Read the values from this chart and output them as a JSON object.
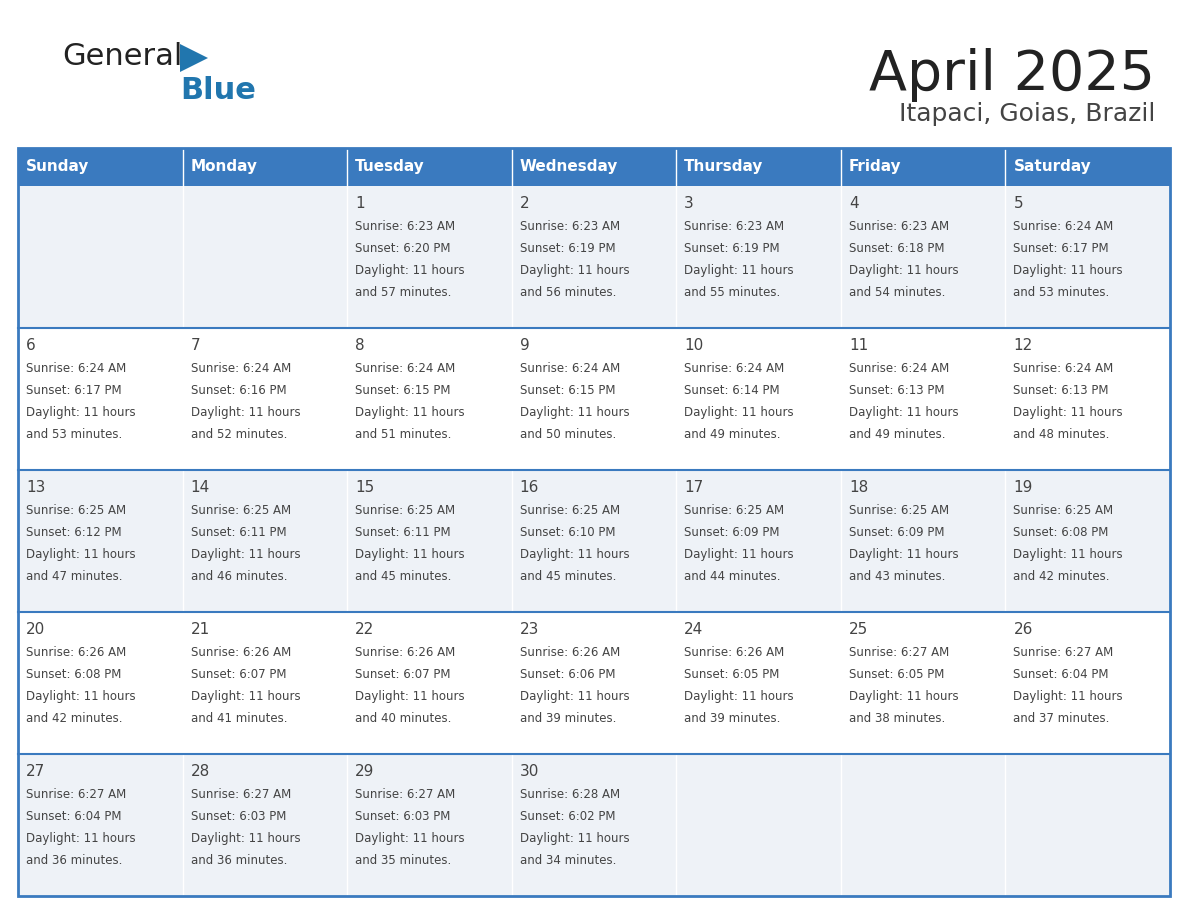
{
  "title": "April 2025",
  "subtitle": "Itapaci, Goias, Brazil",
  "header_bg": "#3a7abf",
  "header_text_color": "#ffffff",
  "cell_bg_odd": "#eef2f7",
  "cell_bg_even": "#ffffff",
  "text_color": "#444444",
  "border_color": "#3a7abf",
  "logo_text_color": "#222222",
  "logo_blue_color": "#2176ae",
  "days_of_week": [
    "Sunday",
    "Monday",
    "Tuesday",
    "Wednesday",
    "Thursday",
    "Friday",
    "Saturday"
  ],
  "calendar_data": [
    [
      {
        "day": "",
        "sunrise": "",
        "sunset": "",
        "daylight": ""
      },
      {
        "day": "",
        "sunrise": "",
        "sunset": "",
        "daylight": ""
      },
      {
        "day": "1",
        "sunrise": "Sunrise: 6:23 AM",
        "sunset": "Sunset: 6:20 PM",
        "daylight": "Daylight: 11 hours\nand 57 minutes."
      },
      {
        "day": "2",
        "sunrise": "Sunrise: 6:23 AM",
        "sunset": "Sunset: 6:19 PM",
        "daylight": "Daylight: 11 hours\nand 56 minutes."
      },
      {
        "day": "3",
        "sunrise": "Sunrise: 6:23 AM",
        "sunset": "Sunset: 6:19 PM",
        "daylight": "Daylight: 11 hours\nand 55 minutes."
      },
      {
        "day": "4",
        "sunrise": "Sunrise: 6:23 AM",
        "sunset": "Sunset: 6:18 PM",
        "daylight": "Daylight: 11 hours\nand 54 minutes."
      },
      {
        "day": "5",
        "sunrise": "Sunrise: 6:24 AM",
        "sunset": "Sunset: 6:17 PM",
        "daylight": "Daylight: 11 hours\nand 53 minutes."
      }
    ],
    [
      {
        "day": "6",
        "sunrise": "Sunrise: 6:24 AM",
        "sunset": "Sunset: 6:17 PM",
        "daylight": "Daylight: 11 hours\nand 53 minutes."
      },
      {
        "day": "7",
        "sunrise": "Sunrise: 6:24 AM",
        "sunset": "Sunset: 6:16 PM",
        "daylight": "Daylight: 11 hours\nand 52 minutes."
      },
      {
        "day": "8",
        "sunrise": "Sunrise: 6:24 AM",
        "sunset": "Sunset: 6:15 PM",
        "daylight": "Daylight: 11 hours\nand 51 minutes."
      },
      {
        "day": "9",
        "sunrise": "Sunrise: 6:24 AM",
        "sunset": "Sunset: 6:15 PM",
        "daylight": "Daylight: 11 hours\nand 50 minutes."
      },
      {
        "day": "10",
        "sunrise": "Sunrise: 6:24 AM",
        "sunset": "Sunset: 6:14 PM",
        "daylight": "Daylight: 11 hours\nand 49 minutes."
      },
      {
        "day": "11",
        "sunrise": "Sunrise: 6:24 AM",
        "sunset": "Sunset: 6:13 PM",
        "daylight": "Daylight: 11 hours\nand 49 minutes."
      },
      {
        "day": "12",
        "sunrise": "Sunrise: 6:24 AM",
        "sunset": "Sunset: 6:13 PM",
        "daylight": "Daylight: 11 hours\nand 48 minutes."
      }
    ],
    [
      {
        "day": "13",
        "sunrise": "Sunrise: 6:25 AM",
        "sunset": "Sunset: 6:12 PM",
        "daylight": "Daylight: 11 hours\nand 47 minutes."
      },
      {
        "day": "14",
        "sunrise": "Sunrise: 6:25 AM",
        "sunset": "Sunset: 6:11 PM",
        "daylight": "Daylight: 11 hours\nand 46 minutes."
      },
      {
        "day": "15",
        "sunrise": "Sunrise: 6:25 AM",
        "sunset": "Sunset: 6:11 PM",
        "daylight": "Daylight: 11 hours\nand 45 minutes."
      },
      {
        "day": "16",
        "sunrise": "Sunrise: 6:25 AM",
        "sunset": "Sunset: 6:10 PM",
        "daylight": "Daylight: 11 hours\nand 45 minutes."
      },
      {
        "day": "17",
        "sunrise": "Sunrise: 6:25 AM",
        "sunset": "Sunset: 6:09 PM",
        "daylight": "Daylight: 11 hours\nand 44 minutes."
      },
      {
        "day": "18",
        "sunrise": "Sunrise: 6:25 AM",
        "sunset": "Sunset: 6:09 PM",
        "daylight": "Daylight: 11 hours\nand 43 minutes."
      },
      {
        "day": "19",
        "sunrise": "Sunrise: 6:25 AM",
        "sunset": "Sunset: 6:08 PM",
        "daylight": "Daylight: 11 hours\nand 42 minutes."
      }
    ],
    [
      {
        "day": "20",
        "sunrise": "Sunrise: 6:26 AM",
        "sunset": "Sunset: 6:08 PM",
        "daylight": "Daylight: 11 hours\nand 42 minutes."
      },
      {
        "day": "21",
        "sunrise": "Sunrise: 6:26 AM",
        "sunset": "Sunset: 6:07 PM",
        "daylight": "Daylight: 11 hours\nand 41 minutes."
      },
      {
        "day": "22",
        "sunrise": "Sunrise: 6:26 AM",
        "sunset": "Sunset: 6:07 PM",
        "daylight": "Daylight: 11 hours\nand 40 minutes."
      },
      {
        "day": "23",
        "sunrise": "Sunrise: 6:26 AM",
        "sunset": "Sunset: 6:06 PM",
        "daylight": "Daylight: 11 hours\nand 39 minutes."
      },
      {
        "day": "24",
        "sunrise": "Sunrise: 6:26 AM",
        "sunset": "Sunset: 6:05 PM",
        "daylight": "Daylight: 11 hours\nand 39 minutes."
      },
      {
        "day": "25",
        "sunrise": "Sunrise: 6:27 AM",
        "sunset": "Sunset: 6:05 PM",
        "daylight": "Daylight: 11 hours\nand 38 minutes."
      },
      {
        "day": "26",
        "sunrise": "Sunrise: 6:27 AM",
        "sunset": "Sunset: 6:04 PM",
        "daylight": "Daylight: 11 hours\nand 37 minutes."
      }
    ],
    [
      {
        "day": "27",
        "sunrise": "Sunrise: 6:27 AM",
        "sunset": "Sunset: 6:04 PM",
        "daylight": "Daylight: 11 hours\nand 36 minutes."
      },
      {
        "day": "28",
        "sunrise": "Sunrise: 6:27 AM",
        "sunset": "Sunset: 6:03 PM",
        "daylight": "Daylight: 11 hours\nand 36 minutes."
      },
      {
        "day": "29",
        "sunrise": "Sunrise: 6:27 AM",
        "sunset": "Sunset: 6:03 PM",
        "daylight": "Daylight: 11 hours\nand 35 minutes."
      },
      {
        "day": "30",
        "sunrise": "Sunrise: 6:28 AM",
        "sunset": "Sunset: 6:02 PM",
        "daylight": "Daylight: 11 hours\nand 34 minutes."
      },
      {
        "day": "",
        "sunrise": "",
        "sunset": "",
        "daylight": ""
      },
      {
        "day": "",
        "sunrise": "",
        "sunset": "",
        "daylight": ""
      },
      {
        "day": "",
        "sunrise": "",
        "sunset": "",
        "daylight": ""
      }
    ]
  ]
}
